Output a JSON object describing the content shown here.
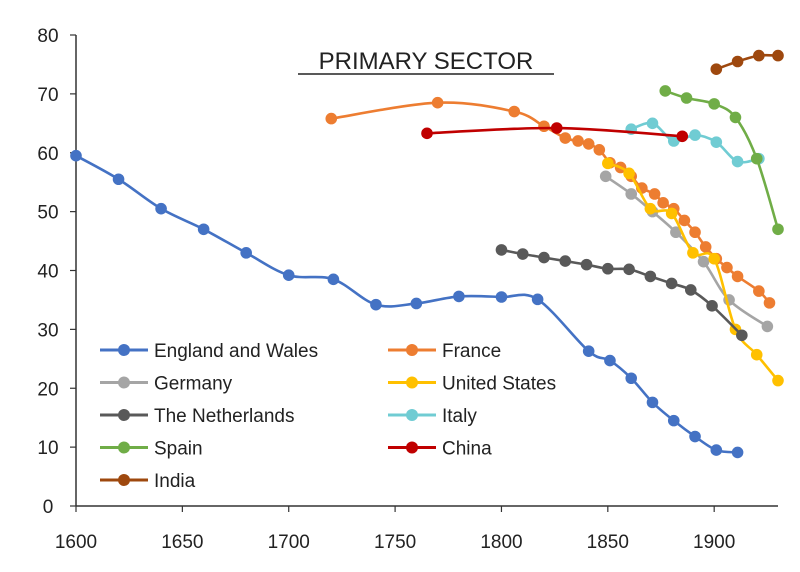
{
  "chart_data": {
    "type": "line",
    "title": "PRIMARY SECTOR",
    "xlabel": "",
    "ylabel": "",
    "xlim": [
      1600,
      1930
    ],
    "ylim": [
      0,
      80
    ],
    "xticks": [
      1600,
      1650,
      1700,
      1750,
      1800,
      1850,
      1900
    ],
    "yticks": [
      0,
      10,
      20,
      30,
      40,
      50,
      60,
      70,
      80
    ],
    "grid": false,
    "legend_position": "bottom-left",
    "series": [
      {
        "name": "England and Wales",
        "color": "#4472C4",
        "x": [
          1600,
          1620,
          1640,
          1660,
          1680,
          1700,
          1721,
          1741,
          1760,
          1780,
          1800,
          1817,
          1841,
          1851,
          1861,
          1871,
          1881,
          1891,
          1901,
          1911
        ],
        "y": [
          59.5,
          55.5,
          50.5,
          47,
          43,
          39.2,
          38.5,
          34.2,
          34.4,
          35.6,
          35.5,
          35.1,
          26.3,
          24.7,
          21.7,
          17.6,
          14.5,
          11.8,
          9.5,
          9.1
        ]
      },
      {
        "name": "France",
        "color": "#ED7D31",
        "x": [
          1720,
          1770,
          1806,
          1820,
          1830,
          1836,
          1841,
          1846,
          1851,
          1856,
          1861,
          1866,
          1872,
          1876,
          1881,
          1886,
          1891,
          1896,
          1901,
          1906,
          1911,
          1921,
          1926
        ],
        "y": [
          65.8,
          68.5,
          67,
          64.5,
          62.5,
          62,
          61.5,
          60.5,
          58.3,
          57.5,
          56,
          54,
          53,
          51.5,
          50.5,
          48.5,
          46.5,
          44,
          42,
          40.5,
          39,
          36.5,
          34.5
        ]
      },
      {
        "name": "Germany",
        "color": "#A5A5A5",
        "x": [
          1849,
          1861,
          1871,
          1882,
          1895,
          1907,
          1925
        ],
        "y": [
          56,
          53,
          50,
          46.5,
          41.5,
          35,
          30.5
        ]
      },
      {
        "name": "United States",
        "color": "#FFC000",
        "x": [
          1850,
          1860,
          1870,
          1880,
          1890,
          1900,
          1910,
          1920,
          1930
        ],
        "y": [
          58.2,
          56.5,
          50.5,
          49.7,
          43,
          42,
          30,
          25.7,
          21.3
        ]
      },
      {
        "name": "The Netherlands",
        "color": "#595959",
        "x": [
          1800,
          1810,
          1820,
          1830,
          1840,
          1850,
          1860,
          1870,
          1880,
          1889,
          1899,
          1913
        ],
        "y": [
          43.5,
          42.8,
          42.2,
          41.6,
          41,
          40.3,
          40.2,
          39,
          37.8,
          36.7,
          34,
          29
        ]
      },
      {
        "name": "Italy",
        "color": "#70CCD3",
        "x": [
          1861,
          1871,
          1881,
          1891,
          1901,
          1911,
          1921
        ],
        "y": [
          64,
          65,
          62,
          63,
          61.8,
          58.5,
          59
        ]
      },
      {
        "name": "Spain",
        "color": "#70AD47",
        "x": [
          1877,
          1887,
          1900,
          1910,
          1920,
          1930
        ],
        "y": [
          70.5,
          69.3,
          68.3,
          66,
          59,
          47
        ]
      },
      {
        "name": "China",
        "color": "#C00000",
        "x": [
          1765,
          1826,
          1885
        ],
        "y": [
          63.3,
          64.2,
          62.8
        ]
      },
      {
        "name": "India",
        "color": "#9E480E",
        "x": [
          1901,
          1911,
          1921,
          1930
        ],
        "y": [
          74.2,
          75.5,
          76.5,
          76.5
        ]
      }
    ]
  }
}
